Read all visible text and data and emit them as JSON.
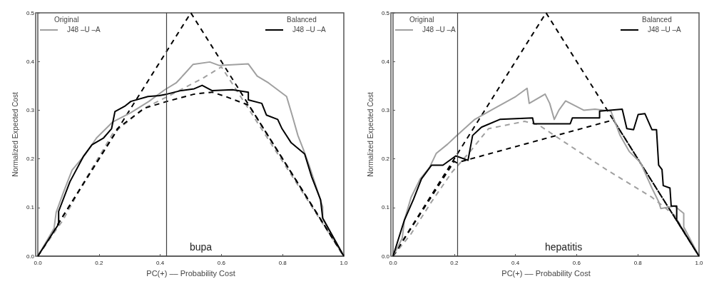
{
  "chart_data": [
    {
      "type": "line",
      "xlabel": "PC(+) –– Probability Cost",
      "ylabel": "Normalized Expected Cost",
      "annotations": [
        "Original",
        "Balanced",
        "bupa"
      ],
      "legend": "top",
      "marker": "none",
      "grid": false,
      "xlim": [
        0,
        1
      ],
      "xticks": [
        {
          "value": 0,
          "label": "0.0"
        },
        {
          "value": 0.2,
          "label": "0.2"
        },
        {
          "value": 0.4,
          "label": "0.4"
        },
        {
          "value": 0.6,
          "label": "0.6"
        },
        {
          "value": 0.8,
          "label": "0.8"
        },
        {
          "value": 1,
          "label": "1.0"
        }
      ],
      "ylim": [
        0,
        0.5
      ],
      "yticks": [
        {
          "value": 0,
          "label": "0.0"
        },
        {
          "value": 0.1,
          "label": "0.1"
        },
        {
          "value": 0.2,
          "label": "0.2"
        },
        {
          "value": 0.3,
          "label": "0.3"
        },
        {
          "value": 0.4,
          "label": "0.4"
        },
        {
          "value": 0.5,
          "label": "0.5"
        }
      ],
      "ref_lines": [
        {
          "axis": "x",
          "value": 0.42,
          "color": "#404040"
        }
      ],
      "series": [
        {
          "name": "J48 –U –A",
          "color": "#a0a0a0",
          "line_style": "solid",
          "x": [
            0,
            0.053,
            0.06,
            0.083,
            0.112,
            0.156,
            0.192,
            0.245,
            0.304,
            0.363,
            0.415,
            0.452,
            0.48,
            0.507,
            0.562,
            0.592,
            0.688,
            0.717,
            0.754,
            0.813,
            0.831,
            0.85,
            0.868,
            0.887,
            0.909,
            0.931,
            0.931,
            1
          ],
          "values": [
            0,
            0.057,
            0.09,
            0.13,
            0.177,
            0.21,
            0.243,
            0.276,
            0.295,
            0.318,
            0.342,
            0.356,
            0.375,
            0.394,
            0.399,
            0.392,
            0.395,
            0.37,
            0.356,
            0.328,
            0.29,
            0.248,
            0.219,
            0.186,
            0.144,
            0.101,
            0.078,
            0
          ]
        },
        {
          "name": "J48 –U –A",
          "color": "#000000",
          "line_style": "solid",
          "x": [
            0,
            0.068,
            0.068,
            0.105,
            0.149,
            0.177,
            0.215,
            0.241,
            0.252,
            0.286,
            0.304,
            0.36,
            0.397,
            0.422,
            0.466,
            0.511,
            0.537,
            0.57,
            0.636,
            0.688,
            0.688,
            0.732,
            0.747,
            0.784,
            0.798,
            0.828,
            0.872,
            0.895,
            0.924,
            0.931,
            1
          ],
          "values": [
            0,
            0.066,
            0.092,
            0.153,
            0.205,
            0.229,
            0.243,
            0.262,
            0.297,
            0.309,
            0.318,
            0.328,
            0.33,
            0.333,
            0.34,
            0.344,
            0.351,
            0.34,
            0.342,
            0.337,
            0.321,
            0.314,
            0.29,
            0.281,
            0.262,
            0.233,
            0.21,
            0.163,
            0.116,
            0.078,
            0
          ]
        },
        {
          "color": "#a0a0a0",
          "line_style": "dashed",
          "x": [
            0,
            0.083,
            0.156,
            0.245,
            0.348,
            0.452,
            0.54,
            0.6,
            1
          ],
          "values": [
            0,
            0.075,
            0.158,
            0.252,
            0.304,
            0.337,
            0.366,
            0.389,
            0
          ]
        },
        {
          "color": "#000000",
          "line_style": "dashed",
          "x": [
            0,
            0.25,
            0.26,
            0.348,
            0.422,
            0.511,
            0.57,
            0.614,
            0.69,
            1
          ],
          "values": [
            0,
            0.25,
            0.262,
            0.304,
            0.318,
            0.333,
            0.337,
            0.328,
            0.31,
            0
          ]
        },
        {
          "color": "#000000",
          "line_style": "dashed",
          "x": [
            0,
            0.5,
            1
          ],
          "values": [
            0,
            0.5,
            0
          ]
        }
      ]
    },
    {
      "type": "line",
      "xlabel": "PC(+) –– Probability Cost",
      "ylabel": "Normalized Expected Cost",
      "annotations": [
        "Original",
        "Balanced",
        "hepatitis"
      ],
      "legend": "top",
      "marker": "none",
      "grid": false,
      "xlim": [
        0,
        1
      ],
      "xticks": [
        {
          "value": 0,
          "label": "0.0"
        },
        {
          "value": 0.2,
          "label": "0.2"
        },
        {
          "value": 0.4,
          "label": "0.4"
        },
        {
          "value": 0.6,
          "label": "0.6"
        },
        {
          "value": 0.8,
          "label": "0.8"
        },
        {
          "value": 1,
          "label": "1.0"
        }
      ],
      "ylim": [
        0,
        0.5
      ],
      "yticks": [
        {
          "value": 0,
          "label": "0.0"
        },
        {
          "value": 0.1,
          "label": "0.1"
        },
        {
          "value": 0.2,
          "label": "0.2"
        },
        {
          "value": 0.3,
          "label": "0.3"
        },
        {
          "value": 0.4,
          "label": "0.4"
        },
        {
          "value": 0.5,
          "label": "0.5"
        }
      ],
      "ref_lines": [
        {
          "axis": "x",
          "value": 0.21,
          "color": "#404040"
        }
      ],
      "series": [
        {
          "name": "J48 –U –A",
          "color": "#a0a0a0",
          "line_style": "solid",
          "x": [
            0,
            0.03,
            0.037,
            0.059,
            0.089,
            0.119,
            0.141,
            0.178,
            0.205,
            0.267,
            0.326,
            0.401,
            0.438,
            0.445,
            0.497,
            0.512,
            0.527,
            0.542,
            0.564,
            0.623,
            0.66,
            0.712,
            0.742,
            0.772,
            0.809,
            0.846,
            0.868,
            0.875,
            0.92,
            0.95,
            0.95,
            1
          ],
          "values": [
            0,
            0.037,
            0.074,
            0.121,
            0.159,
            0.182,
            0.211,
            0.23,
            0.246,
            0.281,
            0.302,
            0.328,
            0.345,
            0.314,
            0.333,
            0.314,
            0.281,
            0.3,
            0.319,
            0.3,
            0.302,
            0.298,
            0.248,
            0.215,
            0.192,
            0.14,
            0.112,
            0.098,
            0.103,
            0.088,
            0.06,
            0
          ]
        },
        {
          "name": "J48 –U –A",
          "color": "#000000",
          "line_style": "solid",
          "x": [
            0,
            0.037,
            0.067,
            0.093,
            0.126,
            0.163,
            0.205,
            0.245,
            0.26,
            0.289,
            0.349,
            0.456,
            0.46,
            0.579,
            0.586,
            0.675,
            0.675,
            0.749,
            0.764,
            0.786,
            0.801,
            0.823,
            0.846,
            0.861,
            0.868,
            0.879,
            0.883,
            0.905,
            0.909,
            0.927,
            0.927,
            1
          ],
          "values": [
            0,
            0.074,
            0.117,
            0.159,
            0.187,
            0.187,
            0.206,
            0.197,
            0.248,
            0.265,
            0.281,
            0.284,
            0.272,
            0.272,
            0.284,
            0.284,
            0.298,
            0.302,
            0.262,
            0.26,
            0.291,
            0.293,
            0.26,
            0.26,
            0.187,
            0.178,
            0.145,
            0.14,
            0.103,
            0.103,
            0.074,
            0
          ]
        },
        {
          "color": "#a0a0a0",
          "line_style": "dashed",
          "x": [
            0,
            0.059,
            0.126,
            0.193,
            0.252,
            0.312,
            0.43,
            0.475,
            0.549,
            0.697,
            0.846,
            0.92,
            1
          ],
          "values": [
            0,
            0.046,
            0.112,
            0.173,
            0.215,
            0.262,
            0.277,
            0.27,
            0.239,
            0.178,
            0.121,
            0.084,
            0
          ]
        },
        {
          "color": "#000000",
          "line_style": "dashed",
          "x": [
            0,
            0.2,
            0.208,
            0.72,
            1
          ],
          "values": [
            0,
            0.195,
            0.192,
            0.28,
            0
          ]
        },
        {
          "color": "#000000",
          "line_style": "dashed",
          "x": [
            0,
            0.5,
            1
          ],
          "values": [
            0,
            0.5,
            0
          ]
        }
      ]
    }
  ]
}
